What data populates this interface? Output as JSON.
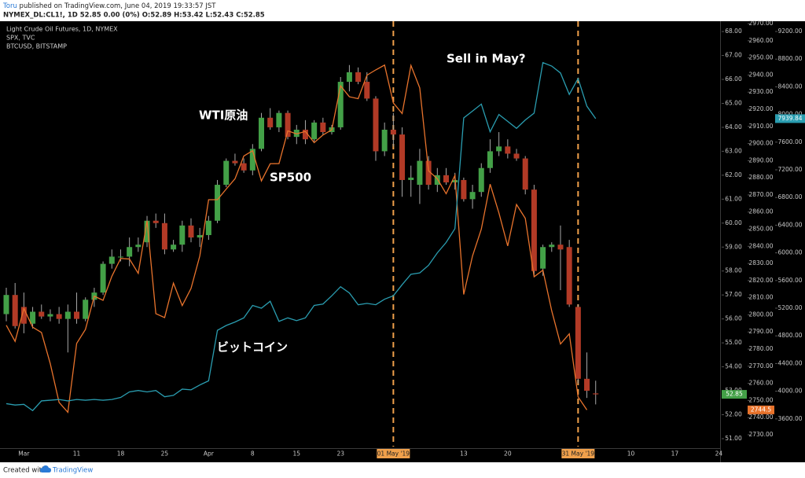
{
  "header": {
    "author": "Toru",
    "published": " published on TradingView.com, June 04, 2019 19:33:57 JST",
    "quote": "NYMEX_DL:CL1!, 1D  52.85 0.00 (0%) O:52.89 H:53.42 L:52.43 C:52.85"
  },
  "chart_data": {
    "type": "candlestick",
    "categories": [
      null,
      null,
      "Mar",
      null,
      null,
      null,
      null,
      null,
      "11",
      null,
      null,
      null,
      null,
      "18",
      null,
      null,
      null,
      null,
      "25",
      null,
      null,
      null,
      null,
      "Apr",
      null,
      null,
      null,
      null,
      "8",
      null,
      null,
      null,
      null,
      "15",
      null,
      null,
      null,
      null,
      "23",
      null,
      null,
      null,
      null,
      null,
      "01 May '19",
      null,
      null,
      null,
      null,
      null,
      null,
      null,
      "13",
      null,
      null,
      null,
      null,
      "20",
      null,
      null,
      null,
      null,
      null,
      null,
      null,
      "31 May '19",
      null,
      null,
      null,
      null,
      null,
      "10",
      null,
      null,
      null,
      null,
      "17",
      null,
      null,
      null,
      null,
      "24"
    ],
    "series": [
      {
        "name": "Light Crude Oil Futures, 1D, NYMEX",
        "type": "candlestick",
        "axis": "y",
        "up_color": "#43a047",
        "down_color": "#b23a26",
        "wick_color": "#a8a8a8",
        "open": [
          56.2,
          57.0,
          56.5,
          55.8,
          56.3,
          56.1,
          56.2,
          56.0,
          56.3,
          56.0,
          56.8,
          57.1,
          58.3,
          58.6,
          58.6,
          59.0,
          59.2,
          60.1,
          60.0,
          58.9,
          59.1,
          59.9,
          59.4,
          59.5,
          60.1,
          61.6,
          62.6,
          62.5,
          62.2,
          63.1,
          64.4,
          64.0,
          64.6,
          63.6,
          63.9,
          63.5,
          64.2,
          63.8,
          64.0,
          65.9,
          66.3,
          65.9,
          65.2,
          63.0,
          63.9,
          63.7,
          61.8,
          61.6,
          62.6,
          61.6,
          62.0,
          61.7,
          61.8,
          61.0,
          61.3,
          62.3,
          63.0,
          63.2,
          62.9,
          62.7,
          61.4,
          58.1,
          59.0,
          59.1,
          59.0,
          56.5,
          53.5,
          52.89,
          null,
          null,
          null,
          null,
          null,
          null,
          null,
          null,
          null,
          null,
          null,
          null,
          null,
          null
        ],
        "high": [
          57.3,
          57.5,
          57.1,
          56.5,
          56.6,
          56.4,
          56.5,
          56.6,
          57.1,
          56.9,
          57.3,
          58.4,
          58.9,
          58.9,
          59.4,
          59.4,
          60.3,
          60.4,
          60.4,
          59.3,
          60.1,
          60.2,
          59.8,
          60.3,
          61.8,
          62.7,
          62.9,
          62.7,
          63.3,
          64.6,
          64.8,
          64.7,
          64.7,
          64.1,
          64.3,
          64.3,
          64.4,
          64.1,
          66.1,
          66.6,
          66.5,
          66.3,
          65.3,
          64.2,
          64.6,
          64.0,
          62.4,
          63.1,
          62.8,
          62.3,
          62.3,
          62.1,
          61.9,
          61.6,
          62.5,
          63.5,
          63.8,
          63.5,
          63.1,
          62.8,
          61.6,
          59.1,
          59.2,
          59.9,
          59.3,
          56.6,
          54.6,
          53.42,
          null,
          null,
          null,
          null,
          null,
          null,
          null,
          null,
          null,
          null,
          null,
          null,
          null,
          null
        ],
        "low": [
          55.9,
          55.6,
          55.4,
          55.6,
          56.0,
          55.9,
          55.8,
          54.6,
          55.8,
          55.9,
          56.5,
          57.0,
          58.1,
          58.4,
          58.2,
          58.8,
          59.0,
          59.8,
          58.7,
          58.8,
          58.8,
          59.2,
          59.0,
          59.3,
          60.0,
          61.5,
          62.4,
          62.1,
          62.0,
          63.0,
          63.9,
          63.8,
          63.5,
          63.3,
          63.3,
          63.4,
          63.7,
          63.7,
          63.9,
          65.5,
          65.8,
          65.1,
          62.6,
          62.8,
          63.2,
          61.1,
          61.1,
          60.8,
          61.4,
          61.3,
          61.6,
          61.4,
          60.9,
          60.6,
          61.1,
          62.1,
          62.8,
          62.7,
          62.6,
          61.2,
          57.8,
          57.8,
          58.8,
          57.2,
          56.5,
          53.3,
          52.7,
          52.43,
          null,
          null,
          null,
          null,
          null,
          null,
          null,
          null,
          null,
          null,
          null,
          null,
          null,
          null
        ],
        "close": [
          57.0,
          55.7,
          55.8,
          56.3,
          56.1,
          56.2,
          56.0,
          56.3,
          56.0,
          56.8,
          57.1,
          58.3,
          58.6,
          58.6,
          59.0,
          59.1,
          60.1,
          60.0,
          58.9,
          59.1,
          59.9,
          59.4,
          59.5,
          60.1,
          61.6,
          62.6,
          62.5,
          62.2,
          63.1,
          64.4,
          64.0,
          64.6,
          63.6,
          63.9,
          63.5,
          64.2,
          63.8,
          64.0,
          65.9,
          66.3,
          65.9,
          65.2,
          63.0,
          63.9,
          63.7,
          61.8,
          61.9,
          62.6,
          61.6,
          62.0,
          61.7,
          61.8,
          61.0,
          61.3,
          62.3,
          63.0,
          63.2,
          62.9,
          62.7,
          61.4,
          58.0,
          59.0,
          59.1,
          58.9,
          56.6,
          53.5,
          53.0,
          52.85,
          null,
          null,
          null,
          null,
          null,
          null,
          null,
          null,
          null,
          null,
          null,
          null,
          null,
          null
        ]
      },
      {
        "name": "SPX, TVC",
        "type": "line",
        "axis": "y2",
        "color": "#e8732c",
        "values": [
          2793.9,
          2784.5,
          2803.7,
          2792.8,
          2789.7,
          2771.5,
          2748.9,
          2743.1,
          2783.3,
          2791.5,
          2810.9,
          2808.5,
          2822.5,
          2832.9,
          2832.6,
          2824.2,
          2854.9,
          2800.7,
          2798.4,
          2818.5,
          2805.4,
          2815.4,
          2834.4,
          2867.2,
          2867.2,
          2873.4,
          2879.4,
          2892.7,
          2895.8,
          2878.2,
          2888.2,
          2888.3,
          2907.4,
          2905.6,
          2907.1,
          2900.5,
          2905.0,
          2908.0,
          2933.7,
          2927.3,
          2926.2,
          2939.9,
          2943.0,
          2945.8,
          2923.7,
          2917.5,
          2945.6,
          2932.5,
          2884.1,
          2879.4,
          2870.7,
          2881.4,
          2811.9,
          2834.4,
          2850.0,
          2876.3,
          2859.5,
          2840.2,
          2864.4,
          2856.3,
          2822.2,
          2826.1,
          2802.4,
          2783.0,
          2788.9,
          2752.1,
          2744.5,
          null,
          null,
          null,
          null,
          null,
          null,
          null,
          null,
          null,
          null,
          null,
          null,
          null,
          null,
          null
        ]
      },
      {
        "name": "BTCUSD, BITSTAMP",
        "type": "line",
        "axis": "y3",
        "color": "#2a9db0",
        "values": [
          3820,
          3800,
          3810,
          3720,
          3860,
          3870,
          3880,
          3860,
          3880,
          3870,
          3880,
          3870,
          3880,
          3910,
          3990,
          4010,
          3990,
          4010,
          3920,
          3940,
          4030,
          4020,
          4090,
          4150,
          4880,
          4950,
          5000,
          5060,
          5240,
          5200,
          5300,
          5010,
          5060,
          5020,
          5060,
          5240,
          5260,
          5380,
          5510,
          5420,
          5250,
          5270,
          5250,
          5330,
          5380,
          5540,
          5690,
          5710,
          5820,
          6000,
          6150,
          6350,
          7950,
          8050,
          8150,
          7750,
          8000,
          7900,
          7800,
          7920,
          8020,
          8750,
          8700,
          8600,
          8290,
          8520,
          8120,
          7939.84,
          null,
          null,
          null,
          null,
          null,
          null,
          null,
          null,
          null,
          null,
          null,
          null,
          null,
          null
        ]
      }
    ],
    "ylim": [
      50.67,
      68.43
    ],
    "yticks": [
      {
        "value": 51,
        "label": "51.00"
      },
      {
        "value": 52,
        "label": "52.00"
      },
      {
        "value": 53,
        "label": "53.00"
      },
      {
        "value": 54,
        "label": "54.00"
      },
      {
        "value": 55,
        "label": "55.00"
      },
      {
        "value": 56,
        "label": "56.00"
      },
      {
        "value": 57,
        "label": "57.00"
      },
      {
        "value": 58,
        "label": "58.00"
      },
      {
        "value": 59,
        "label": "59.00"
      },
      {
        "value": 60,
        "label": "60.00"
      },
      {
        "value": 61,
        "label": "61.00"
      },
      {
        "value": 62,
        "label": "62.00"
      },
      {
        "value": 63,
        "label": "63.00"
      },
      {
        "value": 64,
        "label": "64.00"
      },
      {
        "value": 65,
        "label": "65.00"
      },
      {
        "value": 66,
        "label": "66.00"
      },
      {
        "value": 67,
        "label": "67.00"
      },
      {
        "value": 68,
        "label": "68.00"
      }
    ],
    "y2lim": [
      2723.1,
      2971.4
    ],
    "y2ticks": [
      {
        "value": 2730,
        "label": "2730.00"
      },
      {
        "value": 2740,
        "label": "2740.00"
      },
      {
        "value": 2750,
        "label": "2750.00"
      },
      {
        "value": 2760,
        "label": "2760.00"
      },
      {
        "value": 2770,
        "label": "2770.00"
      },
      {
        "value": 2780,
        "label": "2780.00"
      },
      {
        "value": 2790,
        "label": "2790.00"
      },
      {
        "value": 2800,
        "label": "2800.00"
      },
      {
        "value": 2810,
        "label": "2810.00"
      },
      {
        "value": 2820,
        "label": "2820.00"
      },
      {
        "value": 2830,
        "label": "2830.00"
      },
      {
        "value": 2840,
        "label": "2840.00"
      },
      {
        "value": 2850,
        "label": "2850.00"
      },
      {
        "value": 2860,
        "label": "2860.00"
      },
      {
        "value": 2870,
        "label": "2870.00"
      },
      {
        "value": 2880,
        "label": "2880.00"
      },
      {
        "value": 2890,
        "label": "2890.00"
      },
      {
        "value": 2900,
        "label": "2900.00"
      },
      {
        "value": 2910,
        "label": "2910.00"
      },
      {
        "value": 2920,
        "label": "2920.00"
      },
      {
        "value": 2930,
        "label": "2930.00"
      },
      {
        "value": 2940,
        "label": "2940.00"
      },
      {
        "value": 2950,
        "label": "2950.00"
      },
      {
        "value": 2960,
        "label": "2960.00"
      },
      {
        "value": 2970,
        "label": "2970.00"
      }
    ],
    "y3lim": [
      3200,
      9348
    ],
    "y3ticks": [
      {
        "value": 3600,
        "label": "3600.00"
      },
      {
        "value": 4000,
        "label": "4000.00"
      },
      {
        "value": 4400,
        "label": "4400.00"
      },
      {
        "value": 4800,
        "label": "4800.00"
      },
      {
        "value": 5200,
        "label": "5200.00"
      },
      {
        "value": 5600,
        "label": "5600.00"
      },
      {
        "value": 6000,
        "label": "6000.00"
      },
      {
        "value": 6400,
        "label": "6400.00"
      },
      {
        "value": 6800,
        "label": "6800.00"
      },
      {
        "value": 7200,
        "label": "7200.00"
      },
      {
        "value": 7600,
        "label": "7600.00"
      },
      {
        "value": 8000,
        "label": "8000.00"
      },
      {
        "value": 8400,
        "label": "8400.00"
      },
      {
        "value": 8800,
        "label": "8800.00"
      },
      {
        "value": 9200,
        "label": "9200.00"
      }
    ],
    "highlight": {
      "categories": [
        44,
        65
      ],
      "color": "#f0a04b"
    },
    "grid": false,
    "annotations": [
      "WTI原油",
      "SP500",
      "ビットコイン",
      "Sell in May?"
    ]
  },
  "footer": {
    "created_with": "Created with",
    "brand": "TradingView"
  }
}
